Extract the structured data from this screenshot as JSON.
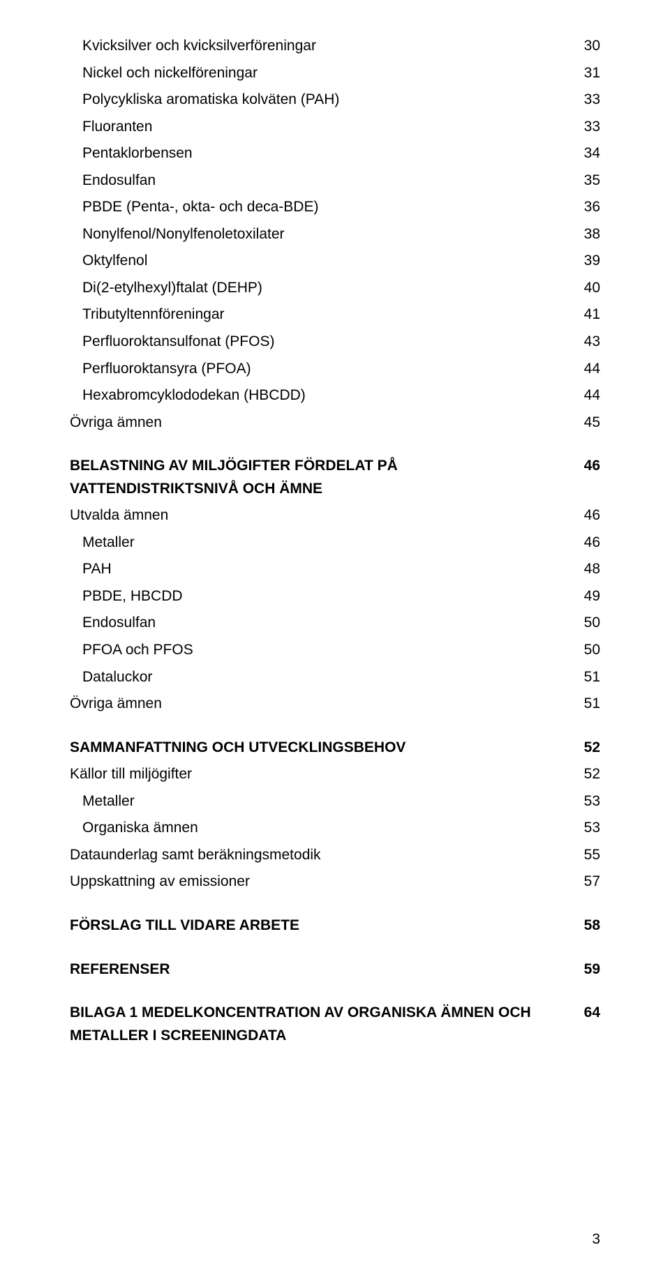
{
  "colors": {
    "background": "#ffffff",
    "text": "#000000"
  },
  "typography": {
    "family": "Arial, Helvetica, sans-serif",
    "size_pt": 16
  },
  "toc": [
    {
      "label": "Kvicksilver och kvicksilverföreningar",
      "page": "30",
      "bold": false,
      "indent": 1,
      "gap": false
    },
    {
      "label": "Nickel och nickelföreningar",
      "page": "31",
      "bold": false,
      "indent": 1,
      "gap": false
    },
    {
      "label": "Polycykliska aromatiska kolväten (PAH)",
      "page": "33",
      "bold": false,
      "indent": 1,
      "gap": false
    },
    {
      "label": "Fluoranten",
      "page": "33",
      "bold": false,
      "indent": 1,
      "gap": false
    },
    {
      "label": "Pentaklorbensen",
      "page": "34",
      "bold": false,
      "indent": 1,
      "gap": false
    },
    {
      "label": "Endosulfan",
      "page": "35",
      "bold": false,
      "indent": 1,
      "gap": false
    },
    {
      "label": "PBDE (Penta-, okta- och deca-BDE)",
      "page": "36",
      "bold": false,
      "indent": 1,
      "gap": false
    },
    {
      "label": "Nonylfenol/Nonylfenoletoxilater",
      "page": "38",
      "bold": false,
      "indent": 1,
      "gap": false
    },
    {
      "label": "Oktylfenol",
      "page": "39",
      "bold": false,
      "indent": 1,
      "gap": false
    },
    {
      "label": "Di(2-etylhexyl)ftalat (DEHP)",
      "page": "40",
      "bold": false,
      "indent": 1,
      "gap": false
    },
    {
      "label": "Tributyltennföreningar",
      "page": "41",
      "bold": false,
      "indent": 1,
      "gap": false
    },
    {
      "label": "Perfluoroktansulfonat (PFOS)",
      "page": "43",
      "bold": false,
      "indent": 1,
      "gap": false
    },
    {
      "label": "Perfluoroktansyra (PFOA)",
      "page": "44",
      "bold": false,
      "indent": 1,
      "gap": false
    },
    {
      "label": "Hexabromcyklododekan (HBCDD)",
      "page": "44",
      "bold": false,
      "indent": 1,
      "gap": false
    },
    {
      "label": "Övriga ämnen",
      "page": "45",
      "bold": false,
      "indent": 0,
      "gap": false
    },
    {
      "label": "BELASTNING AV MILJÖGIFTER FÖRDELAT PÅ VATTENDISTRIKTSNIVÅ OCH ÄMNE",
      "page": "46",
      "bold": true,
      "indent": 0,
      "gap": true
    },
    {
      "label": "Utvalda ämnen",
      "page": "46",
      "bold": false,
      "indent": 0,
      "gap": false
    },
    {
      "label": "Metaller",
      "page": "46",
      "bold": false,
      "indent": 1,
      "gap": false
    },
    {
      "label": "PAH",
      "page": "48",
      "bold": false,
      "indent": 1,
      "gap": false
    },
    {
      "label": "PBDE, HBCDD",
      "page": "49",
      "bold": false,
      "indent": 1,
      "gap": false
    },
    {
      "label": "Endosulfan",
      "page": "50",
      "bold": false,
      "indent": 1,
      "gap": false
    },
    {
      "label": "PFOA och PFOS",
      "page": "50",
      "bold": false,
      "indent": 1,
      "gap": false
    },
    {
      "label": "Dataluckor",
      "page": "51",
      "bold": false,
      "indent": 1,
      "gap": false
    },
    {
      "label": "Övriga ämnen",
      "page": "51",
      "bold": false,
      "indent": 0,
      "gap": false
    },
    {
      "label": "SAMMANFATTNING OCH UTVECKLINGSBEHOV",
      "page": "52",
      "bold": true,
      "indent": 0,
      "gap": true
    },
    {
      "label": "Källor till miljögifter",
      "page": "52",
      "bold": false,
      "indent": 0,
      "gap": false
    },
    {
      "label": "Metaller",
      "page": "53",
      "bold": false,
      "indent": 1,
      "gap": false
    },
    {
      "label": "Organiska ämnen",
      "page": "53",
      "bold": false,
      "indent": 1,
      "gap": false
    },
    {
      "label": "Dataunderlag samt beräkningsmetodik",
      "page": "55",
      "bold": false,
      "indent": 0,
      "gap": false
    },
    {
      "label": "Uppskattning av emissioner",
      "page": "57",
      "bold": false,
      "indent": 0,
      "gap": false
    },
    {
      "label": "FÖRSLAG TILL VIDARE ARBETE",
      "page": "58",
      "bold": true,
      "indent": 0,
      "gap": true
    },
    {
      "label": "REFERENSER",
      "page": "59",
      "bold": true,
      "indent": 0,
      "gap": true
    },
    {
      "label": "BILAGA 1 MEDELKONCENTRATION AV ORGANISKA ÄMNEN OCH METALLER I SCREENINGDATA",
      "page": "64",
      "bold": true,
      "indent": 0,
      "gap": true
    }
  ],
  "page_number": "3"
}
